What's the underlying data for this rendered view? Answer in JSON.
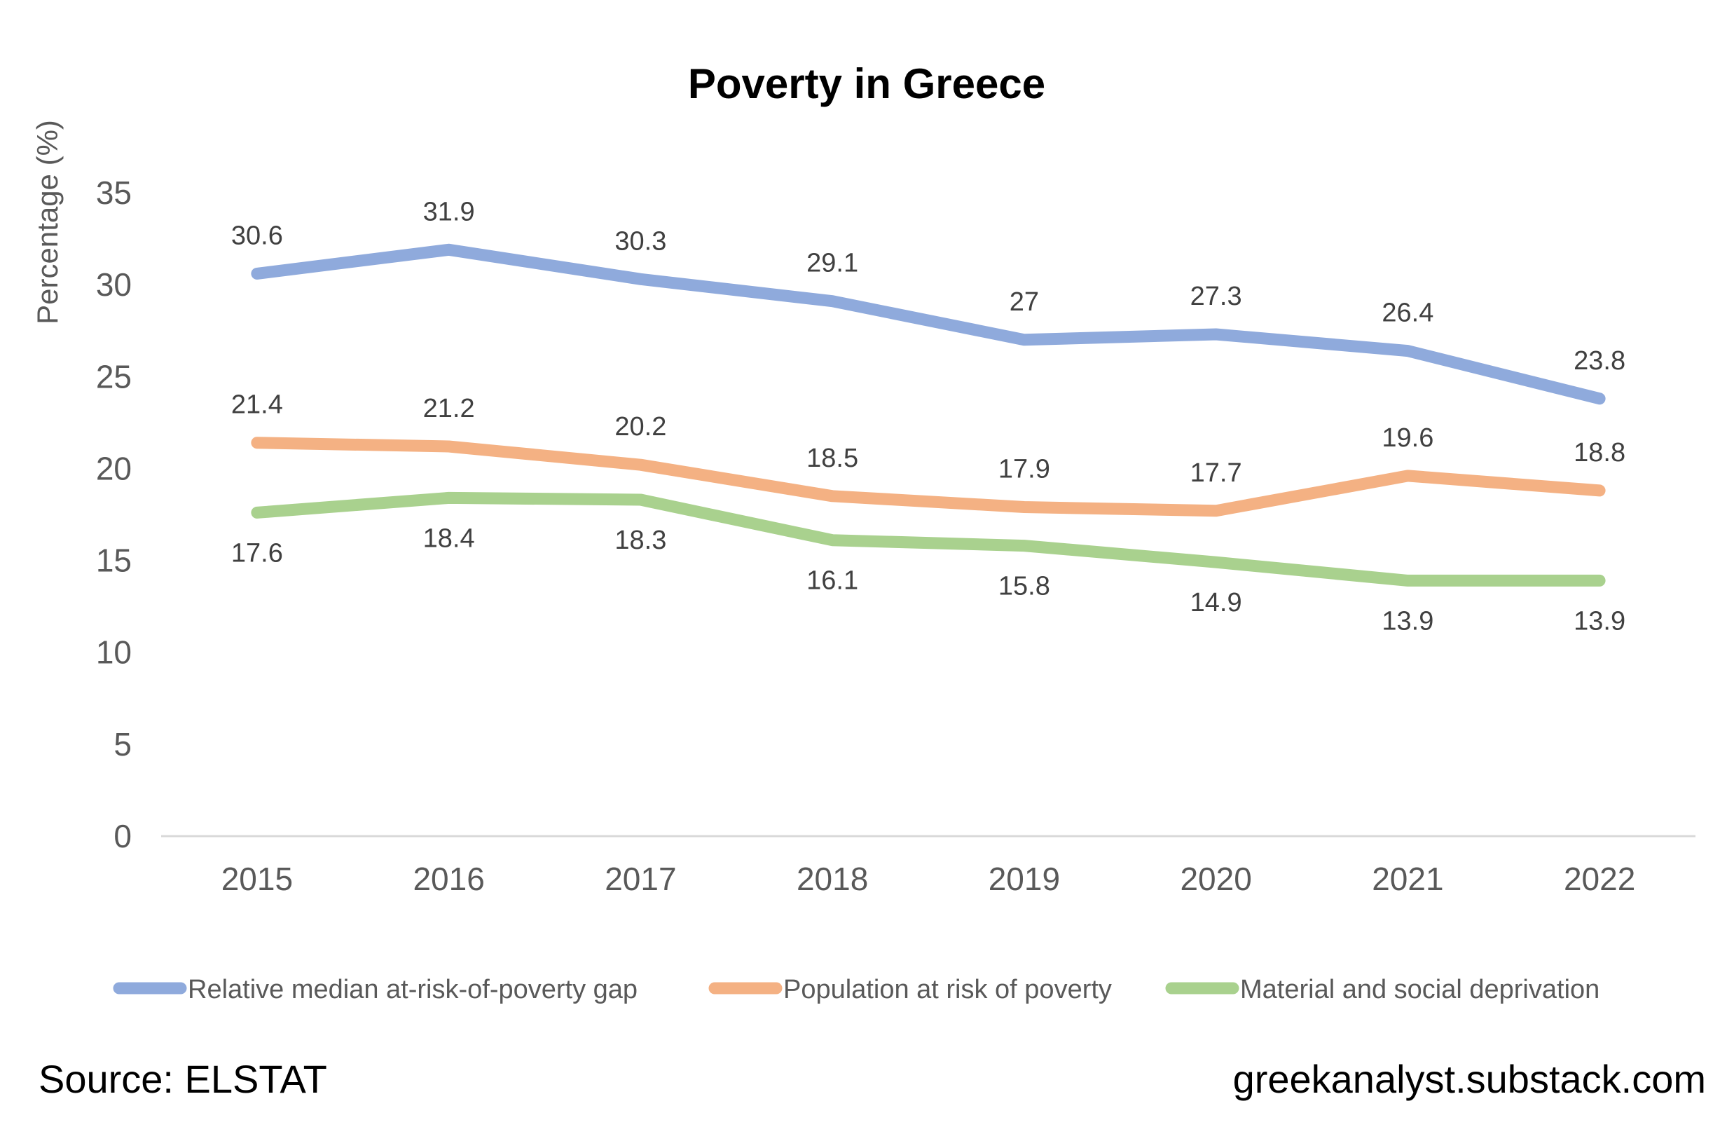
{
  "chart_data": {
    "type": "line",
    "title": "Poverty in Greece",
    "xlabel": "",
    "ylabel": "Percentage (%)",
    "ylim": [
      0,
      35
    ],
    "yticks": [
      0,
      5,
      10,
      15,
      20,
      25,
      30,
      35
    ],
    "categories": [
      "2015",
      "2016",
      "2017",
      "2018",
      "2019",
      "2020",
      "2021",
      "2022"
    ],
    "grid": false,
    "legend_position": "bottom",
    "series": [
      {
        "name": "Relative median at-risk-of-poverty gap",
        "color": "#8faadc",
        "values": [
          30.6,
          31.9,
          30.3,
          29.1,
          27,
          27.3,
          26.4,
          23.8
        ],
        "labels": [
          "30.6",
          "31.9",
          "30.3",
          "29.1",
          "27",
          "27.3",
          "26.4",
          "23.8"
        ],
        "label_side": "above"
      },
      {
        "name": "Population at risk of poverty",
        "color": "#f4b183",
        "values": [
          21.4,
          21.2,
          20.2,
          18.5,
          17.9,
          17.7,
          19.6,
          18.8
        ],
        "labels": [
          "21.4",
          "21.2",
          "20.2",
          "18.5",
          "17.9",
          "17.7",
          "19.6",
          "18.8"
        ],
        "label_side": "above"
      },
      {
        "name": "Material and social deprivation",
        "color": "#a9d18e",
        "values": [
          17.6,
          18.4,
          18.3,
          16.1,
          15.8,
          14.9,
          13.9,
          13.9
        ],
        "labels": [
          "17.6",
          "18.4",
          "18.3",
          "16.1",
          "15.8",
          "14.9",
          "13.9",
          "13.9"
        ],
        "label_side": "below"
      }
    ]
  },
  "footer": {
    "source": "Source: ELSTAT",
    "site": "greekanalyst.substack.com"
  }
}
